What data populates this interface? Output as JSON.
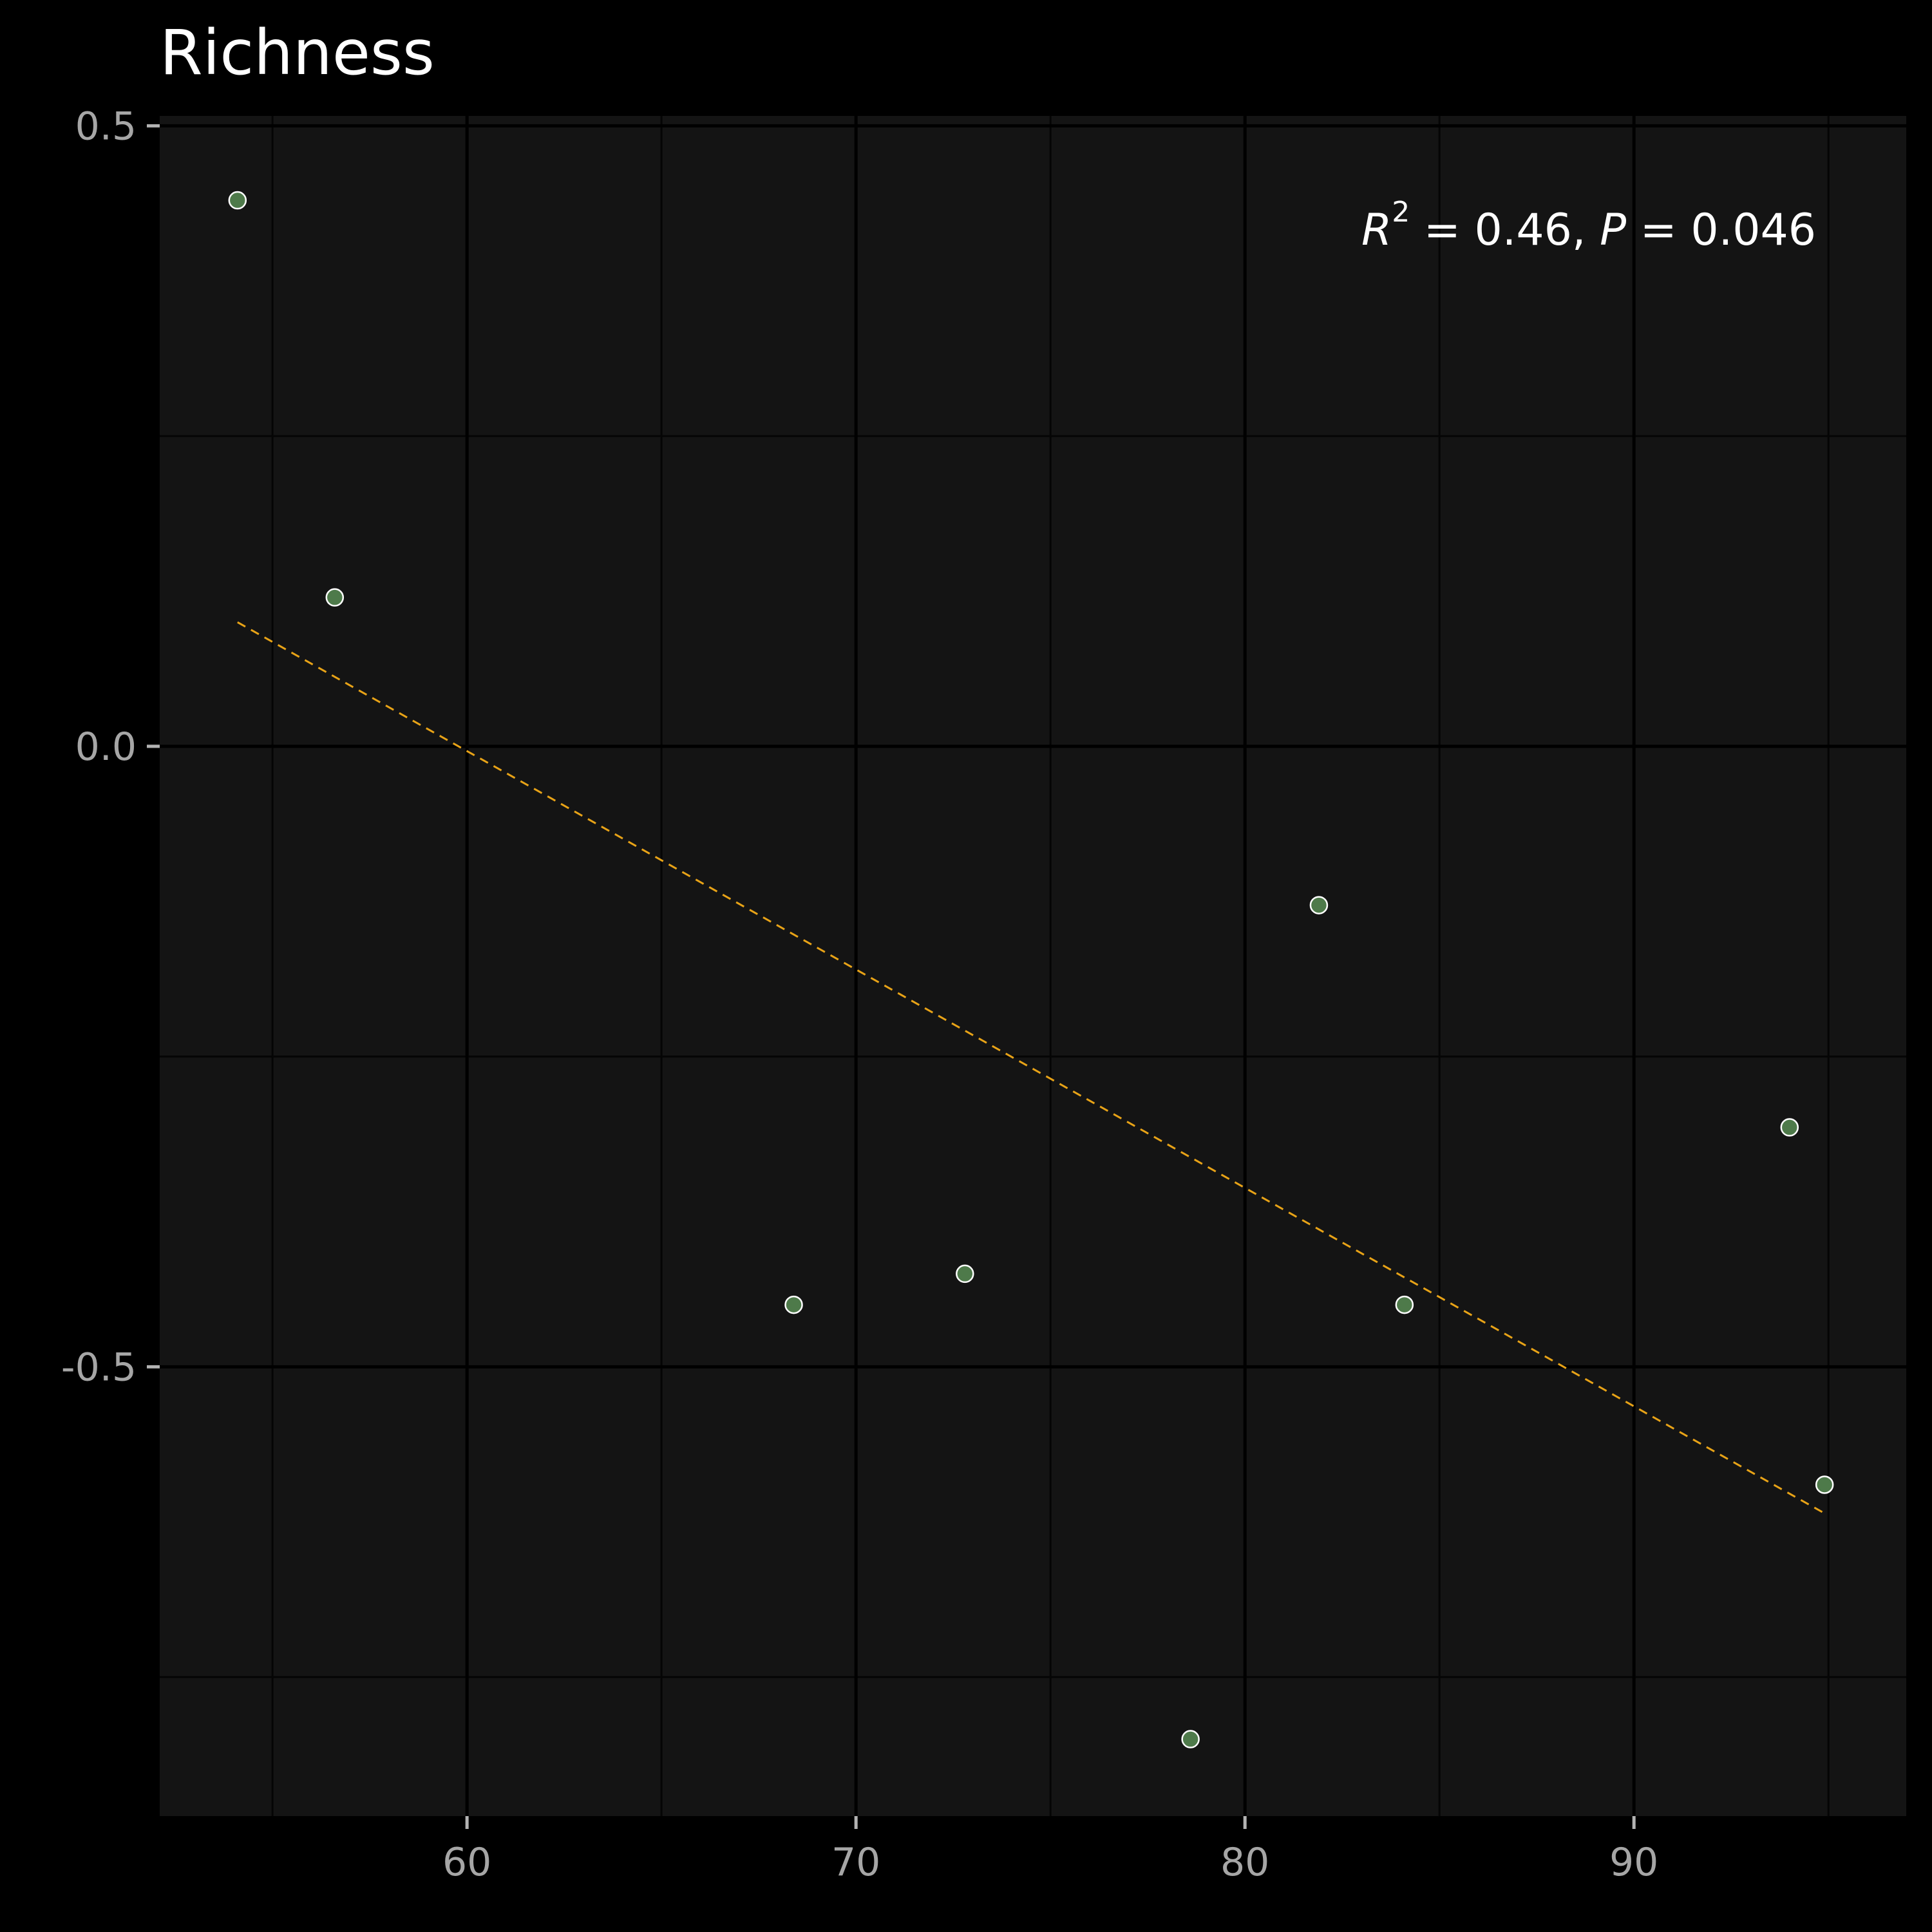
{
  "chart_data": {
    "type": "scatter",
    "title": "Richness",
    "xlabel": "",
    "ylabel": "",
    "xlim": [
      52.1,
      97.0
    ],
    "ylim": [
      -0.862,
      0.508
    ],
    "x_ticks": [
      60,
      70,
      80,
      90
    ],
    "x_tick_labels": [
      "60",
      "70",
      "80",
      "90"
    ],
    "y_ticks": [
      0.5,
      0.0,
      -0.5
    ],
    "y_tick_labels": [
      "0.5",
      "0.0",
      "-0.5"
    ],
    "x_minor_grid": [
      55,
      65,
      75,
      85,
      95
    ],
    "y_minor_grid": [
      0.25,
      -0.25,
      -0.75
    ],
    "grid": true,
    "legend": "none",
    "points": [
      {
        "x": 54.1,
        "y": 0.44
      },
      {
        "x": 56.6,
        "y": 0.12
      },
      {
        "x": 68.4,
        "y": -0.45
      },
      {
        "x": 72.8,
        "y": -0.425
      },
      {
        "x": 78.6,
        "y": -0.8
      },
      {
        "x": 81.9,
        "y": -0.128
      },
      {
        "x": 84.1,
        "y": -0.45
      },
      {
        "x": 94.0,
        "y": -0.307
      },
      {
        "x": 94.9,
        "y": -0.595
      }
    ],
    "trend_line": {
      "x0": 54.1,
      "y0": 0.1,
      "x1": 94.9,
      "y1": -0.618
    },
    "annotation": {
      "r_symbol": "R",
      "r_exponent": "2",
      "r_value": " = 0.46, ",
      "p_symbol": "P",
      "p_value": " = 0.046"
    },
    "colors": {
      "background": "#000000",
      "panel": "#141414",
      "grid_major": "#000000",
      "grid_minor": "#050505",
      "point_fill": "#4e7a4a",
      "point_stroke": "#ffffff",
      "trend": "#e8a317",
      "tick_text": "#a6a6a6",
      "title_text": "#ffffff"
    }
  }
}
